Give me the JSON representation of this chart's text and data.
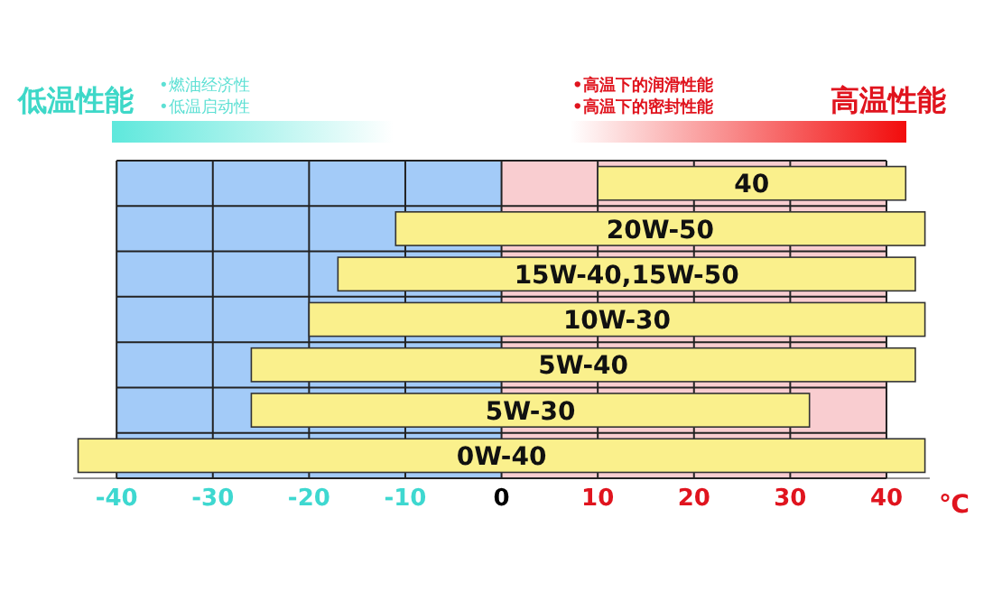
{
  "chart_data": {
    "type": "bar",
    "orientation": "horizontal",
    "categories": [
      "40",
      "20W-50",
      "15W-40,15W-50",
      "10W-30",
      "5W-40",
      "5W-30",
      "0W-40"
    ],
    "base": [
      10,
      -11,
      -17,
      -20,
      -26,
      -26,
      -44
    ],
    "values": [
      32,
      55,
      60,
      64,
      69,
      58,
      88
    ],
    "color": "#faf08c",
    "xlim": [
      -44.5,
      44.5
    ],
    "xticks": [
      -40,
      -30,
      -20,
      -10,
      0,
      10,
      20,
      30,
      40
    ],
    "xlabel": "℃",
    "grid": true,
    "bands": [
      {
        "axis": "x",
        "from": -40,
        "to": 0,
        "color": "#a3cbf8"
      },
      {
        "axis": "x",
        "from": 0,
        "to": 40,
        "color": "#f9cdd0"
      }
    ],
    "annotations": [
      "低温性能",
      "•燃油经济性",
      "•低温启动性",
      "•高温下的润滑性能",
      "•高温下的密封性能",
      "高温性能"
    ]
  }
}
